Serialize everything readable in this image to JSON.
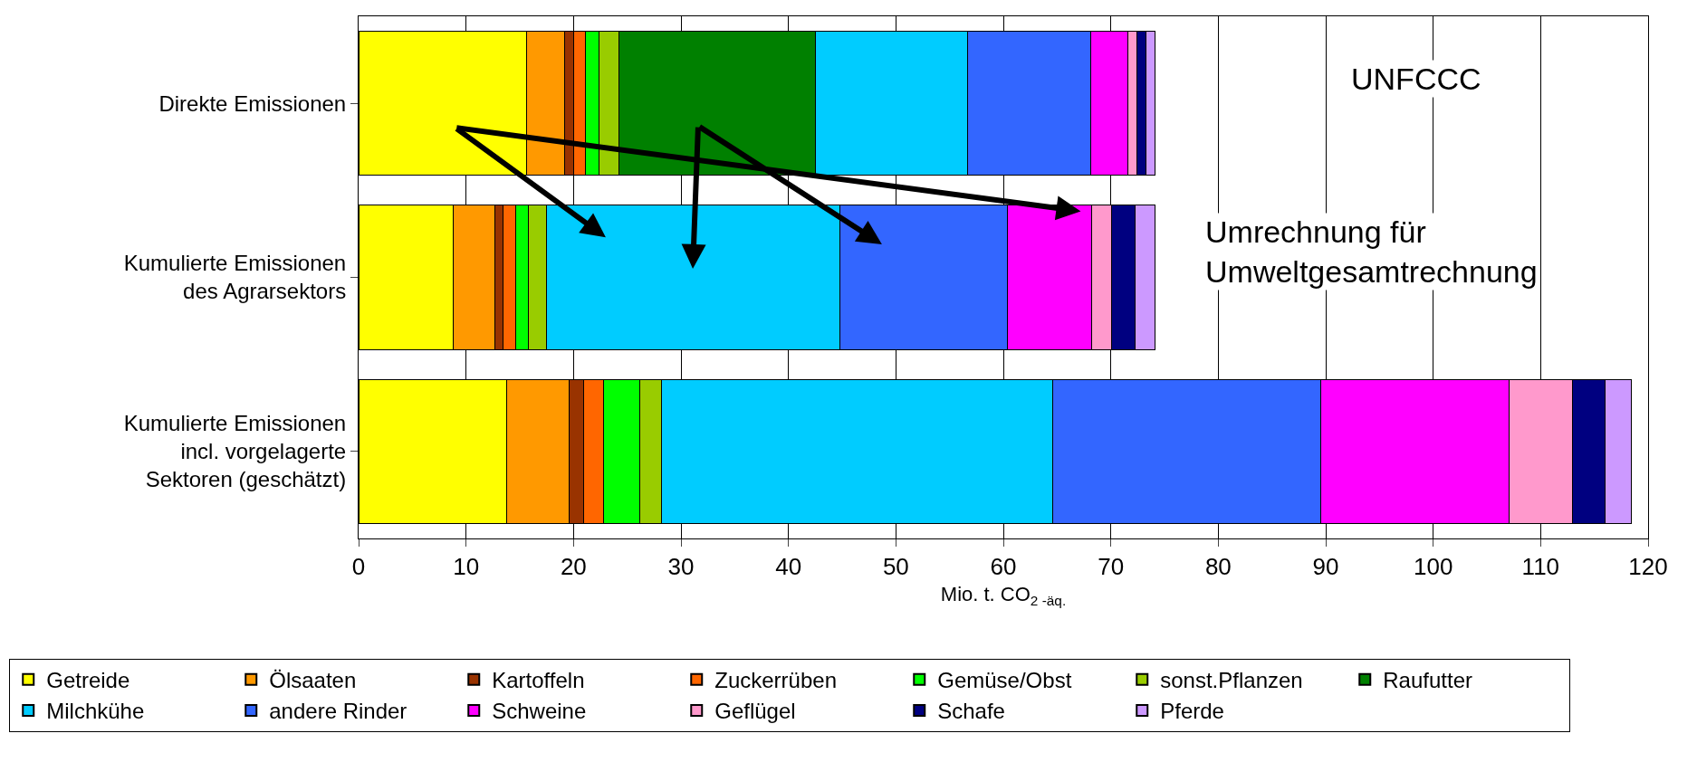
{
  "chart_data": {
    "type": "bar",
    "orientation": "horizontal",
    "stacked": true,
    "categories": [
      "Direkte Emissionen",
      "Kumulierte Emissionen\ndes Agrarsektors",
      "Kumulierte Emissionen\nincl. vorgelagerte\nSektoren (geschätzt)"
    ],
    "xlabel": "Mio. t. CO$_{2 -äq.}$",
    "xlim": [
      0,
      120
    ],
    "xticks": [
      0,
      10,
      20,
      30,
      40,
      50,
      60,
      70,
      80,
      90,
      100,
      110,
      120
    ],
    "grid": "x",
    "legend": "bottom",
    "annotations": [
      "UNFCCC",
      "Umrechnung für\nUmweltgesamtrechnung"
    ],
    "series": [
      {
        "name": "Getreide",
        "color": "#ffff00",
        "values": [
          15.6,
          8.8,
          13.8
        ]
      },
      {
        "name": "Ölsaaten",
        "color": "#ff9900",
        "values": [
          3.6,
          3.9,
          5.8
        ]
      },
      {
        "name": "Kartoffeln",
        "color": "#993300",
        "values": [
          0.8,
          0.7,
          1.3
        ]
      },
      {
        "name": "Zuckerrüben",
        "color": "#ff6600",
        "values": [
          1.1,
          1.2,
          1.9
        ]
      },
      {
        "name": "Gemüse/Obst",
        "color": "#00ff00",
        "values": [
          1.3,
          1.2,
          3.4
        ]
      },
      {
        "name": "sonst.Pflanzen",
        "color": "#99cc00",
        "values": [
          1.8,
          1.7,
          2.0
        ]
      },
      {
        "name": "Raufutter",
        "color": "#008000",
        "values": [
          18.3,
          null,
          null
        ]
      },
      {
        "name": "Milchkühe",
        "color": "#00ccff",
        "values": [
          14.2,
          27.3,
          36.4
        ]
      },
      {
        "name": "andere Rinder",
        "color": "#3366ff",
        "values": [
          11.4,
          15.6,
          24.9
        ]
      },
      {
        "name": "Schweine",
        "color": "#ff00ff",
        "values": [
          3.5,
          7.8,
          17.6
        ]
      },
      {
        "name": "Geflügel",
        "color": "#ff99cc",
        "values": [
          0.8,
          1.9,
          5.9
        ]
      },
      {
        "name": "Schafe",
        "color": "#000080",
        "values": [
          0.9,
          2.2,
          3.0
        ]
      },
      {
        "name": "Pferde",
        "color": "#cc99ff",
        "values": [
          0.8,
          1.8,
          2.4
        ]
      }
    ]
  }
}
